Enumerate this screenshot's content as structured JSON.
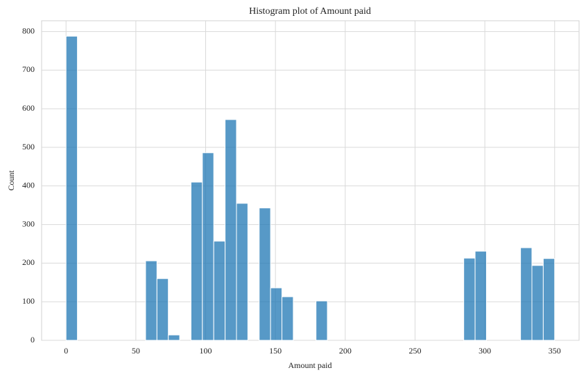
{
  "chart_data": {
    "type": "histogram",
    "title": "Histogram plot of Amount paid",
    "x_label": "Amount paid",
    "y_label": "Count",
    "bins": [
      0,
      8.14,
      16.28,
      24.42,
      32.56,
      40.7,
      48.84,
      56.98,
      65.12,
      73.26,
      81.4,
      89.53,
      97.67,
      105.81,
      113.95,
      122.09,
      130.23,
      138.37,
      146.51,
      154.65,
      162.79,
      170.93,
      179.07,
      187.21,
      195.35,
      203.49,
      211.63,
      219.77,
      227.91,
      236.05,
      244.19,
      252.33,
      260.47,
      268.6,
      276.74,
      284.88,
      293.02,
      301.16,
      309.3,
      317.44,
      325.58,
      333.72,
      341.86,
      350
    ],
    "values": [
      788,
      0,
      0,
      0,
      0,
      0,
      0,
      206,
      160,
      14,
      0,
      410,
      486,
      257,
      572,
      355,
      0,
      343,
      136,
      113,
      0,
      0,
      102,
      0,
      0,
      0,
      0,
      0,
      0,
      0,
      0,
      0,
      0,
      0,
      0,
      213,
      231,
      0,
      0,
      0,
      240,
      194,
      212
    ],
    "color": "#1f77b4",
    "xlim": [
      -17.5,
      367.5
    ],
    "xticks": [
      0,
      50,
      100,
      150,
      200,
      250,
      300,
      350
    ],
    "ylim": [
      0,
      828
    ],
    "yticks": [
      0,
      100,
      200,
      300,
      400,
      500,
      600,
      700,
      800
    ],
    "grid": true
  }
}
